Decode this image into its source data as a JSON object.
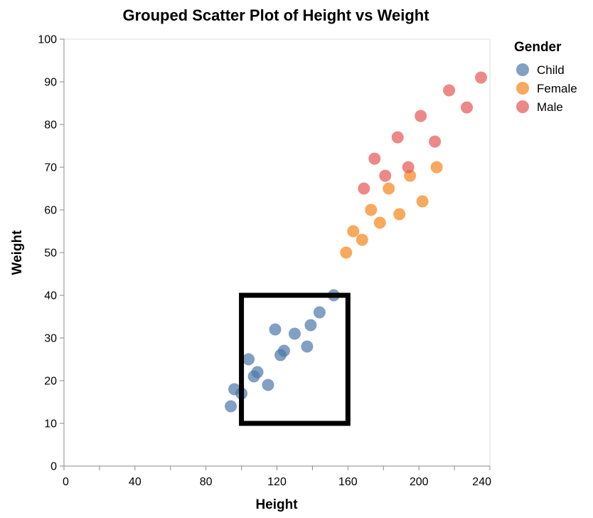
{
  "chart_data": {
    "type": "scatter",
    "title": "Grouped Scatter Plot of Height vs Weight",
    "xlabel": "Height",
    "ylabel": "Weight",
    "xlim": [
      0,
      240
    ],
    "ylim": [
      0,
      100
    ],
    "x_ticks": [
      0,
      20,
      40,
      60,
      80,
      100,
      120,
      140,
      160,
      180,
      200,
      220,
      240
    ],
    "x_tick_labels": [
      "0",
      "",
      "40",
      "",
      "80",
      "",
      "120",
      "",
      "160",
      "",
      "200",
      "",
      "240"
    ],
    "y_ticks": [
      0,
      10,
      20,
      30,
      40,
      50,
      60,
      70,
      80,
      90,
      100
    ],
    "y_tick_labels": [
      "0",
      "10",
      "20",
      "30",
      "40",
      "50",
      "60",
      "70",
      "80",
      "90",
      "100"
    ],
    "grid": false,
    "legend": {
      "title": "Gender",
      "position": "top-right"
    },
    "series": [
      {
        "name": "Child",
        "color": "#4c78a8",
        "points": [
          [
            94,
            14
          ],
          [
            96,
            18
          ],
          [
            100,
            17
          ],
          [
            104,
            25
          ],
          [
            107,
            21
          ],
          [
            109,
            22
          ],
          [
            115,
            19
          ],
          [
            119,
            32
          ],
          [
            122,
            26
          ],
          [
            124,
            27
          ],
          [
            130,
            31
          ],
          [
            137,
            28
          ],
          [
            139,
            33
          ],
          [
            144,
            36
          ],
          [
            152,
            40
          ]
        ]
      },
      {
        "name": "Female",
        "color": "#f58518",
        "points": [
          [
            159,
            50
          ],
          [
            163,
            55
          ],
          [
            168,
            53
          ],
          [
            173,
            60
          ],
          [
            178,
            57
          ],
          [
            183,
            65
          ],
          [
            189,
            59
          ],
          [
            195,
            68
          ],
          [
            202,
            62
          ],
          [
            210,
            70
          ]
        ]
      },
      {
        "name": "Male",
        "color": "#e45756",
        "points": [
          [
            169,
            65
          ],
          [
            175,
            72
          ],
          [
            181,
            68
          ],
          [
            188,
            77
          ],
          [
            194,
            70
          ],
          [
            201,
            82
          ],
          [
            209,
            76
          ],
          [
            217,
            88
          ],
          [
            227,
            84
          ],
          [
            235,
            91
          ]
        ]
      }
    ],
    "annotations": [
      {
        "type": "rectangle",
        "x_range": [
          100,
          160
        ],
        "y_range": [
          10,
          40
        ],
        "color": "#000000"
      }
    ]
  }
}
